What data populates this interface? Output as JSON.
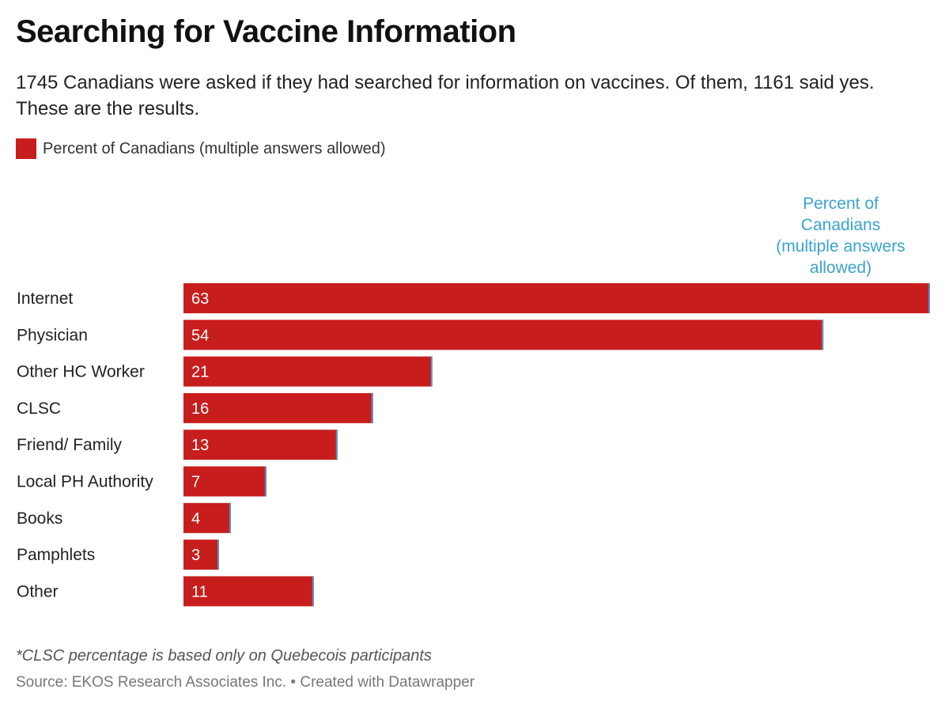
{
  "header": {
    "title": "Searching for Vaccine Information",
    "subtitle": "1745 Canadians were asked if they had searched for information on vaccines. Of them, 1161 said yes. These are the results."
  },
  "legend": {
    "label": "Percent of Canadians (multiple answers allowed)",
    "color": "#c71e1d"
  },
  "footer": {
    "note": "*CLSC percentage is based only on Quebecois participants",
    "source": "Source: EKOS Research Associates Inc. • Created with Datawrapper"
  },
  "chart_data": {
    "type": "bar",
    "orientation": "horizontal",
    "column_header": [
      "Percent of",
      "Canadians",
      "(multiple answers",
      "allowed)"
    ],
    "column_header_color": "#3aa3d0",
    "categories": [
      "Internet",
      "Physician",
      "Other HC Worker",
      "CLSC",
      "Friend/ Family",
      "Local PH Authority",
      "Books",
      "Pamphlets",
      "Other"
    ],
    "series": [
      {
        "name": "Percent of Canadians (multiple answers allowed)",
        "values": [
          63,
          54,
          21,
          16,
          13,
          7,
          4,
          3,
          11
        ],
        "color": "#c71e1d"
      }
    ],
    "xlim": [
      0,
      63
    ],
    "data_labels": true,
    "legend_position": "top-left",
    "grid": false
  }
}
